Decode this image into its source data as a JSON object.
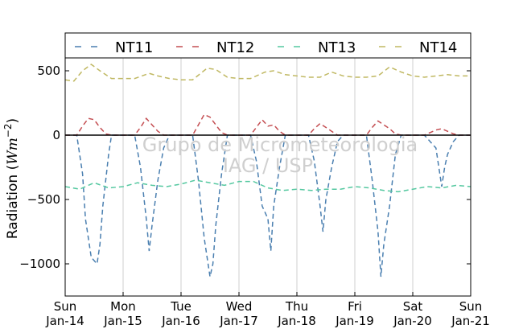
{
  "chart_data": {
    "type": "line",
    "title": "",
    "ylabel": "Radiation (Wm⁻²)",
    "ylabel_parts": {
      "main": "Radiation (",
      "unit": "Wm",
      "exp": "−2",
      "close": ")"
    },
    "xlabel": "",
    "xlim": [
      0,
      7
    ],
    "ylim": [
      -1250,
      600
    ],
    "yticks": [
      500,
      0,
      -500,
      -1000
    ],
    "ytick_labels": [
      "500",
      "0",
      "−500",
      "−1000"
    ],
    "xticks": [
      0,
      1,
      2,
      3,
      4,
      5,
      6,
      7
    ],
    "xtick_labels": [
      [
        "Sun",
        "Jan-14"
      ],
      [
        "Mon",
        "Jan-15"
      ],
      [
        "Tue",
        "Jan-16"
      ],
      [
        "Wed",
        "Jan-17"
      ],
      [
        "Thu",
        "Jan-18"
      ],
      [
        "Fri",
        "Jan-19"
      ],
      [
        "Sat",
        "Jan-20"
      ],
      [
        "Sun",
        "Jan-21"
      ]
    ],
    "grid": "vertical",
    "zero_line": true,
    "legend_position": "top",
    "watermark": [
      "Grupo de Micrometeorologia",
      "IAG / USP"
    ],
    "series": [
      {
        "name": "NT11",
        "color": "#4a7fb0",
        "style": "dashed",
        "x": [
          0,
          0.2,
          0.3,
          0.35,
          0.45,
          0.55,
          0.6,
          0.65,
          0.75,
          0.8,
          1.2,
          1.3,
          1.4,
          1.45,
          1.5,
          1.6,
          1.7,
          1.8,
          2.2,
          2.3,
          2.4,
          2.5,
          2.55,
          2.6,
          2.7,
          2.8,
          3.2,
          3.3,
          3.4,
          3.5,
          3.55,
          3.6,
          3.7,
          3.8,
          4.2,
          4.3,
          4.4,
          4.45,
          4.5,
          4.6,
          4.7,
          4.8,
          5.2,
          5.3,
          5.4,
          5.45,
          5.5,
          5.6,
          5.7,
          5.8,
          6.2,
          6.3,
          6.4,
          6.5,
          6.55,
          6.6,
          6.7,
          6.8,
          7
        ],
        "y": [
          0,
          0,
          -300,
          -650,
          -950,
          -1000,
          -850,
          -550,
          -150,
          0,
          0,
          -250,
          -650,
          -900,
          -700,
          -350,
          -100,
          0,
          0,
          -350,
          -800,
          -1100,
          -1000,
          -700,
          -300,
          0,
          0,
          -200,
          -550,
          -650,
          -900,
          -550,
          -250,
          0,
          0,
          -200,
          -550,
          -750,
          -500,
          -250,
          -50,
          0,
          0,
          -350,
          -750,
          -1100,
          -850,
          -550,
          -150,
          0,
          0,
          -50,
          -100,
          -400,
          -250,
          -150,
          -50,
          0,
          0
        ]
      },
      {
        "name": "NT12",
        "color": "#c44e52",
        "style": "dashed",
        "x": [
          0,
          0.2,
          0.3,
          0.4,
          0.5,
          0.6,
          0.7,
          0.8,
          1.2,
          1.3,
          1.4,
          1.5,
          1.6,
          1.7,
          1.8,
          2.2,
          2.3,
          2.4,
          2.5,
          2.6,
          2.7,
          2.8,
          3.2,
          3.3,
          3.4,
          3.5,
          3.6,
          3.7,
          3.8,
          4.2,
          4.3,
          4.4,
          4.5,
          4.6,
          4.7,
          4.8,
          5.2,
          5.3,
          5.4,
          5.5,
          5.6,
          5.7,
          5.8,
          6.2,
          6.3,
          6.4,
          6.5,
          6.6,
          6.7,
          6.8,
          7
        ],
        "y": [
          0,
          0,
          70,
          130,
          120,
          60,
          10,
          0,
          0,
          60,
          130,
          80,
          30,
          0,
          0,
          0,
          80,
          160,
          140,
          80,
          20,
          0,
          0,
          60,
          120,
          70,
          80,
          30,
          0,
          0,
          50,
          90,
          60,
          30,
          0,
          0,
          0,
          60,
          110,
          80,
          50,
          10,
          0,
          0,
          20,
          40,
          50,
          30,
          10,
          0,
          0
        ]
      },
      {
        "name": "NT13",
        "color": "#55c8a0",
        "style": "dashed",
        "x": [
          0,
          0.25,
          0.5,
          0.75,
          1,
          1.25,
          1.5,
          1.75,
          2,
          2.25,
          2.5,
          2.75,
          3,
          3.25,
          3.5,
          3.75,
          4,
          4.25,
          4.5,
          4.75,
          5,
          5.25,
          5.5,
          5.75,
          6,
          6.25,
          6.5,
          6.75,
          7
        ],
        "y": [
          -400,
          -420,
          -370,
          -410,
          -400,
          -370,
          -390,
          -400,
          -380,
          -350,
          -370,
          -390,
          -360,
          -360,
          -410,
          -430,
          -420,
          -430,
          -420,
          -420,
          -400,
          -410,
          -430,
          -440,
          -420,
          -400,
          -410,
          -390,
          -400
        ]
      },
      {
        "name": "NT14",
        "color": "#c0b862",
        "style": "dashed",
        "x": [
          0,
          0.15,
          0.3,
          0.45,
          0.6,
          0.8,
          1,
          1.2,
          1.45,
          1.6,
          1.8,
          2,
          2.2,
          2.45,
          2.6,
          2.8,
          3,
          3.2,
          3.45,
          3.6,
          3.8,
          4,
          4.2,
          4.4,
          4.6,
          4.8,
          5,
          5.2,
          5.4,
          5.6,
          5.8,
          6,
          6.2,
          6.4,
          6.6,
          6.8,
          7
        ],
        "y": [
          430,
          420,
          500,
          550,
          500,
          440,
          440,
          440,
          480,
          460,
          440,
          430,
          430,
          520,
          510,
          450,
          440,
          440,
          490,
          500,
          470,
          460,
          450,
          450,
          490,
          460,
          450,
          450,
          460,
          530,
          490,
          460,
          450,
          460,
          470,
          460,
          460
        ]
      }
    ]
  }
}
